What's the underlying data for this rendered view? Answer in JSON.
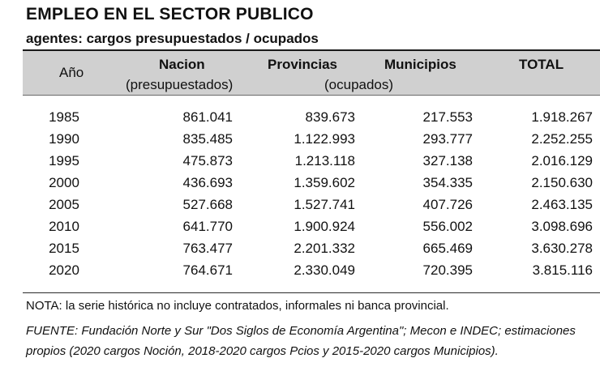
{
  "title": "EMPLEO EN EL SECTOR PUBLICO",
  "subtitle": "agentes: cargos presupuestados / ocupados",
  "table": {
    "headers": {
      "year": "Año",
      "nacion": "Nacion",
      "nacion_sub": "(presupuestados)",
      "provincias": "Provincias",
      "ocupados_sub": "(ocupados)",
      "municipios": "Municipios",
      "total": "TOTAL"
    },
    "rows": [
      {
        "year": "1985",
        "nacion": "861.041",
        "provincias": "839.673",
        "municipios": "217.553",
        "total": "1.918.267"
      },
      {
        "year": "1990",
        "nacion": "835.485",
        "provincias": "1.122.993",
        "municipios": "293.777",
        "total": "2.252.255"
      },
      {
        "year": "1995",
        "nacion": "475.873",
        "provincias": "1.213.118",
        "municipios": "327.138",
        "total": "2.016.129"
      },
      {
        "year": "2000",
        "nacion": "436.693",
        "provincias": "1.359.602",
        "municipios": "354.335",
        "total": "2.150.630"
      },
      {
        "year": "2005",
        "nacion": "527.668",
        "provincias": "1.527.741",
        "municipios": "407.726",
        "total": "2.463.135"
      },
      {
        "year": "2010",
        "nacion": "641.770",
        "provincias": "1.900.924",
        "municipios": "556.002",
        "total": "3.098.696"
      },
      {
        "year": "2015",
        "nacion": "763.477",
        "provincias": "2.201.332",
        "municipios": "665.469",
        "total": "3.630.278"
      },
      {
        "year": "2020",
        "nacion": "764.671",
        "provincias": "2.330.049",
        "municipios": "720.395",
        "total": "3.815.116"
      }
    ]
  },
  "note": "NOTA: la serie histórica no incluye contratados, informales ni banca provincial.",
  "source": "FUENTE: Fundación Norte y Sur \"Dos Siglos de Economía Argentina\"; Mecon e INDEC; estimaciones propios (2020 cargos Noción, 2018-2020 cargos Pcios y 2015-2020 cargos Municipios)."
}
